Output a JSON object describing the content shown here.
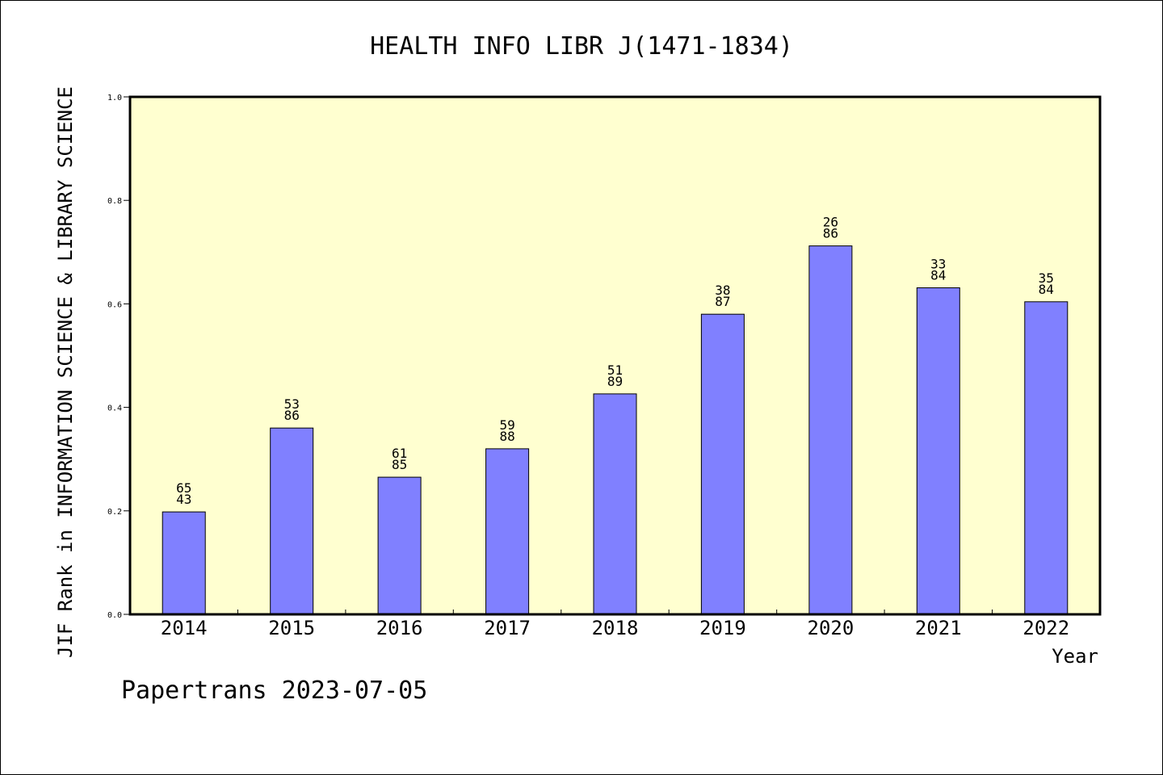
{
  "chart_data": {
    "type": "bar",
    "title": "HEALTH INFO LIBR J(1471-1834)",
    "xlabel": "Year",
    "ylabel": "JIF Rank in INFORMATION SCIENCE & LIBRARY SCIENCE",
    "ylim": [
      0,
      1.0
    ],
    "yticks": [
      "0.0",
      "0.2",
      "0.4",
      "0.6",
      "0.8",
      "1.0"
    ],
    "categories": [
      "2014",
      "2015",
      "2016",
      "2017",
      "2018",
      "2019",
      "2020",
      "2021",
      "2022"
    ],
    "values": [
      0.198,
      0.36,
      0.265,
      0.32,
      0.426,
      0.58,
      0.712,
      0.631,
      0.604
    ],
    "labels": [
      [
        "65",
        "43"
      ],
      [
        "53",
        "86"
      ],
      [
        "61",
        "85"
      ],
      [
        "59",
        "88"
      ],
      [
        "51",
        "89"
      ],
      [
        "38",
        "87"
      ],
      [
        "26",
        "86"
      ],
      [
        "33",
        "84"
      ],
      [
        "35",
        "84"
      ]
    ],
    "colors": {
      "plot_bg": "#ffffd0",
      "bar": "#8080ff",
      "bar_stroke": "#000000"
    },
    "grid": false,
    "legend": "none"
  },
  "footer": "Papertrans 2023-07-05"
}
